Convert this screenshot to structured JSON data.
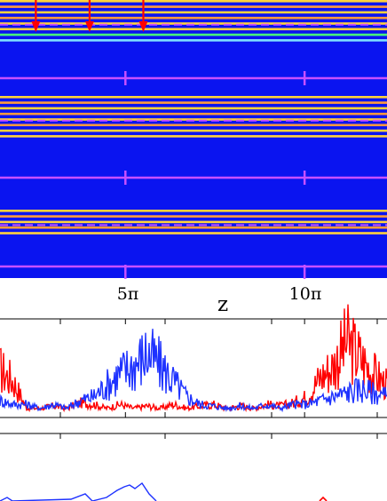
{
  "chart_data": [
    {
      "type": "heatmap",
      "title": "",
      "xlabel": "z",
      "x_ticks": [
        {
          "value": 5,
          "label": "5π"
        },
        {
          "value": 10,
          "label": "10π"
        }
      ],
      "xlim": [
        1.5,
        12.3
      ],
      "band_groups": [
        {
          "name": "top",
          "stripe_colors": [
            "#ffd23c",
            "#ff9a3c",
            "#ffd23c",
            "#ff9a3c",
            "#ffd23c",
            "#ffd23c",
            "#48ff7a",
            "#7fe0ff"
          ],
          "rows": 8
        },
        {
          "name": "middle",
          "stripe_colors": [
            "#ffd23c",
            "#ff9a3c",
            "#ffd23c",
            "#ff9a3c",
            "#ffd23c",
            "#ff9a3c",
            "#ffd23c",
            "#ffd23c"
          ],
          "rows": 8
        },
        {
          "name": "bottom",
          "stripe_colors": [
            "#ffd23c",
            "#ff9a3c",
            "#ffd23c",
            "#ff9a3c",
            "#ffd23c"
          ],
          "rows": 5
        }
      ],
      "arrows_at_z": [
        2.5,
        4.0,
        5.5
      ],
      "colors": {
        "background": "#0a14f0",
        "marker": "#c850ff",
        "arrow": "#ff0000"
      }
    },
    {
      "type": "line",
      "title": "",
      "xlabel": "",
      "ylabel": "",
      "xlim": [
        1.5,
        12.3
      ],
      "series": [
        {
          "color": "#ff0000",
          "values": [
            0.55,
            0.4,
            0.05,
            0.05,
            0.08,
            0.05,
            0.12,
            0.1,
            0.05,
            0.1,
            0.05,
            0.08,
            0.05,
            0.1,
            0.05,
            0.08,
            0.1,
            0.05,
            0.08,
            0.05,
            0.1,
            0.08,
            0.12,
            0.2,
            0.45,
            0.6,
            0.9,
            0.7,
            0.5,
            0.35
          ]
        },
        {
          "color": "#1e32ff",
          "values": [
            0.15,
            0.1,
            0.1,
            0.05,
            0.1,
            0.05,
            0.15,
            0.2,
            0.35,
            0.5,
            0.6,
            0.75,
            0.6,
            0.4,
            0.2,
            0.1,
            0.08,
            0.05,
            0.08,
            0.05,
            0.1,
            0.05,
            0.1,
            0.1,
            0.15,
            0.2,
            0.25,
            0.3,
            0.25,
            0.2
          ]
        }
      ]
    },
    {
      "type": "line",
      "title": "",
      "xlim": [
        1.5,
        12.3
      ],
      "series": [
        {
          "color": "#1e32ff",
          "values": [
            0.05,
            0.08,
            0.1,
            0.15,
            0.2,
            0.3,
            0.45,
            0.55,
            0.3
          ]
        },
        {
          "color": "#ff0000",
          "values": [
            0.05,
            0.05,
            0.08,
            0.1,
            0.1,
            0.2,
            0.25,
            0.3,
            0.15
          ]
        }
      ]
    }
  ]
}
